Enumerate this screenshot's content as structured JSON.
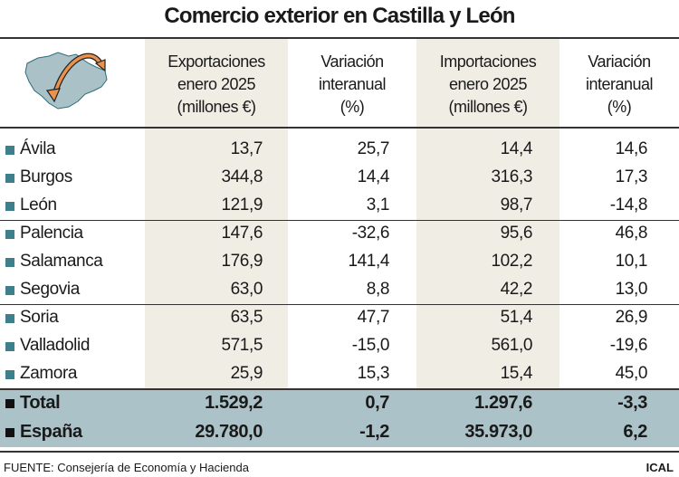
{
  "title": "Comercio exterior en Castilla y León",
  "headers": [
    [
      "Exportaciones",
      "enero 2025",
      "(millones €)"
    ],
    [
      "Variación",
      "interanual",
      "(%)"
    ],
    [
      "Importaciones",
      "enero 2025",
      "(millones €)"
    ],
    [
      "Variación",
      "interanual",
      "(%)"
    ]
  ],
  "rows": [
    {
      "name": "Ávila",
      "exp": "13,7",
      "var_exp": "25,7",
      "imp": "14,4",
      "var_imp": "14,6"
    },
    {
      "name": "Burgos",
      "exp": "344,8",
      "var_exp": "14,4",
      "imp": "316,3",
      "var_imp": "17,3"
    },
    {
      "name": "León",
      "exp": "121,9",
      "var_exp": "3,1",
      "imp": "98,7",
      "var_imp": "-14,8"
    },
    {
      "name": "Palencia",
      "exp": "147,6",
      "var_exp": "-32,6",
      "imp": "95,6",
      "var_imp": "46,8"
    },
    {
      "name": "Salamanca",
      "exp": "176,9",
      "var_exp": "141,4",
      "imp": "102,2",
      "var_imp": "10,1"
    },
    {
      "name": "Segovia",
      "exp": "63,0",
      "var_exp": "8,8",
      "imp": "42,2",
      "var_imp": "13,0"
    },
    {
      "name": "Soria",
      "exp": "63,5",
      "var_exp": "47,7",
      "imp": "51,4",
      "var_imp": "26,9"
    },
    {
      "name": "Valladolid",
      "exp": "571,5",
      "var_exp": "-15,0",
      "imp": "561,0",
      "var_imp": "-19,6"
    },
    {
      "name": "Zamora",
      "exp": "25,9",
      "var_exp": "15,3",
      "imp": "15,4",
      "var_imp": "45,0"
    }
  ],
  "totals": [
    {
      "name": "Total",
      "exp": "1.529,2",
      "var_exp": "0,7",
      "imp": "1.297,6",
      "var_imp": "-3,3"
    },
    {
      "name": "España",
      "exp": "29.780,0",
      "var_exp": "-1,2",
      "imp": "35.973,0",
      "var_imp": "6,2"
    }
  ],
  "footer": {
    "source": "FUENTE: Consejería de Economía y Hacienda",
    "credit": "ICAL"
  },
  "colors": {
    "shade": "#efede4",
    "total_bg": "#abc2c8",
    "bullet": "#3d7f8b",
    "map": "#a9c1c7",
    "arrow": "#e8924e"
  }
}
